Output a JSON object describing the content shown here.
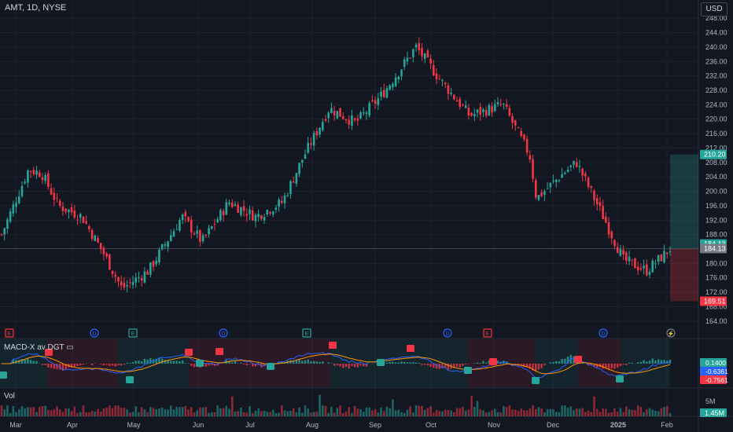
{
  "header": {
    "symbol": "AMT, 1D, NYSE",
    "currency": "USD"
  },
  "price_axis": {
    "ticks": [
      "248.00",
      "244.00",
      "240.00",
      "236.00",
      "232.00",
      "228.00",
      "224.00",
      "220.00",
      "216.00",
      "212.00",
      "208.00",
      "204.00",
      "200.00",
      "196.00",
      "192.00",
      "188.00",
      "184.00",
      "180.00",
      "176.00",
      "172.00",
      "168.00",
      "164.00"
    ],
    "tick_values": [
      248,
      244,
      240,
      236,
      232,
      228,
      224,
      220,
      216,
      212,
      208,
      204,
      200,
      196,
      192,
      188,
      184,
      180,
      176,
      172,
      168,
      164
    ],
    "labels": [
      {
        "text": "210.20",
        "value": 210.2,
        "color": "#26a69a"
      },
      {
        "text": "184.13",
        "value": 185.4,
        "color": "#26a69a"
      },
      {
        "text": "184.13",
        "value": 184.13,
        "color": "#787b86"
      },
      {
        "text": "169.51",
        "value": 169.51,
        "color": "#f23645"
      }
    ]
  },
  "position": {
    "entry": 184.13,
    "target": 210.2,
    "stop": 169.51
  },
  "time_axis": [
    "Mar",
    "Apr",
    "May",
    "Jun",
    "Jul",
    "Aug",
    "Sep",
    "Oct",
    "Nov",
    "Dec",
    "2025",
    "Feb"
  ],
  "events": [
    {
      "type": "E",
      "color": "#f23645"
    },
    {
      "type": "D",
      "color": "#2962ff"
    },
    {
      "type": "E",
      "color": "#26a69a"
    },
    {
      "type": "D",
      "color": "#2962ff"
    },
    {
      "type": "E",
      "color": "#26a69a"
    },
    {
      "type": "D",
      "color": "#2962ff"
    },
    {
      "type": "E",
      "color": "#f23645"
    },
    {
      "type": "D",
      "color": "#2962ff"
    },
    {
      "type": "⚡",
      "color": "#787b86"
    }
  ],
  "macd": {
    "title": "MACD-X av DGT ▭",
    "values": [
      {
        "text": "0.1400",
        "color": "#26a69a"
      },
      {
        "text": "-0.6361",
        "color": "#2962ff"
      },
      {
        "text": "-0.7561",
        "color": "#f23645"
      }
    ]
  },
  "volume": {
    "title": "Vol",
    "scale": "5M",
    "value": "1.45M",
    "value_color": "#26a69a"
  },
  "colors": {
    "up": "#26a69a",
    "down": "#f23645",
    "background": "#131722",
    "grid": "#1e222d"
  },
  "chart_data": {
    "type": "candlestick",
    "title": "AMT, 1D, NYSE",
    "x": [
      "Mar",
      "Apr",
      "May",
      "Jun",
      "Jul",
      "Aug",
      "Sep",
      "Oct",
      "Nov",
      "Dec",
      "2025",
      "Feb"
    ],
    "close_anchors": [
      {
        "t": 0,
        "v": 188
      },
      {
        "t": 0.04,
        "v": 206
      },
      {
        "t": 0.06,
        "v": 205
      },
      {
        "t": 0.085,
        "v": 196
      },
      {
        "t": 0.12,
        "v": 193
      },
      {
        "t": 0.155,
        "v": 182
      },
      {
        "t": 0.18,
        "v": 173
      },
      {
        "t": 0.22,
        "v": 178
      },
      {
        "t": 0.27,
        "v": 193
      },
      {
        "t": 0.3,
        "v": 186
      },
      {
        "t": 0.34,
        "v": 197
      },
      {
        "t": 0.38,
        "v": 193
      },
      {
        "t": 0.42,
        "v": 197
      },
      {
        "t": 0.45,
        "v": 209
      },
      {
        "t": 0.49,
        "v": 223
      },
      {
        "t": 0.53,
        "v": 219
      },
      {
        "t": 0.57,
        "v": 227
      },
      {
        "t": 0.62,
        "v": 240
      },
      {
        "t": 0.66,
        "v": 230
      },
      {
        "t": 0.7,
        "v": 221
      },
      {
        "t": 0.75,
        "v": 224
      },
      {
        "t": 0.79,
        "v": 210
      },
      {
        "t": 0.8,
        "v": 198
      },
      {
        "t": 0.84,
        "v": 205
      },
      {
        "t": 0.86,
        "v": 208
      },
      {
        "t": 0.9,
        "v": 193
      },
      {
        "t": 0.93,
        "v": 181
      },
      {
        "t": 0.965,
        "v": 178
      },
      {
        "t": 1,
        "v": 184
      }
    ],
    "ylim": [
      162,
      250
    ]
  }
}
